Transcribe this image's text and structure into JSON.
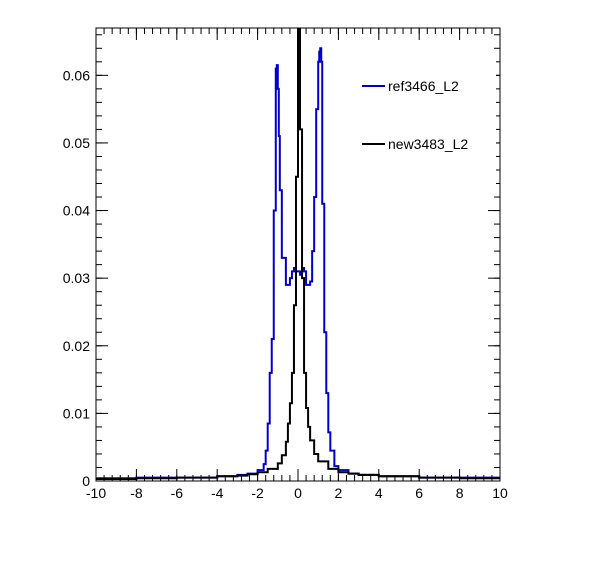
{
  "chart_data": {
    "type": "line",
    "title": "",
    "xlabel": "",
    "ylabel": "",
    "xlim": [
      -10,
      10
    ],
    "ylim": [
      0,
      0.067
    ],
    "grid": false,
    "legend_position": "top-right",
    "x_ticks": [
      -10,
      -8,
      -6,
      -4,
      -2,
      0,
      2,
      4,
      6,
      8,
      10
    ],
    "x_tick_labels": [
      "-10",
      "-8",
      "-6",
      "-4",
      "-2",
      "0",
      "2",
      "4",
      "6",
      "8",
      "10"
    ],
    "y_ticks": [
      0,
      0.01,
      0.02,
      0.03,
      0.04,
      0.05,
      0.06
    ],
    "y_tick_labels": [
      "0",
      "0.01",
      "0.02",
      "0.03",
      "0.04",
      "0.05",
      "0.06"
    ],
    "series": [
      {
        "name": "ref3466_L2",
        "color": "#0000cc",
        "step": true,
        "x": [
          -10,
          -8,
          -6,
          -4,
          -3,
          -2.5,
          -2,
          -1.7,
          -1.6,
          -1.5,
          -1.4,
          -1.3,
          -1.2,
          -1.1,
          -1.05,
          -1.0,
          -0.95,
          -0.9,
          -0.8,
          -0.6,
          -0.4,
          -0.3,
          -0.2,
          -0.1,
          0.0,
          0.1,
          0.2,
          0.3,
          0.4,
          0.6,
          0.7,
          0.8,
          0.9,
          1.0,
          1.05,
          1.1,
          1.15,
          1.2,
          1.3,
          1.4,
          1.5,
          1.6,
          1.8,
          2.0,
          2.5,
          3,
          4,
          6,
          8,
          10
        ],
        "y": [
          0.0004,
          0.0005,
          0.0005,
          0.0007,
          0.0009,
          0.0011,
          0.0016,
          0.0025,
          0.0045,
          0.0085,
          0.016,
          0.021,
          0.04,
          0.061,
          0.0615,
          0.058,
          0.051,
          0.043,
          0.033,
          0.029,
          0.03,
          0.031,
          0.0315,
          0.031,
          0.031,
          0.0305,
          0.0315,
          0.031,
          0.029,
          0.0295,
          0.034,
          0.042,
          0.055,
          0.062,
          0.0635,
          0.064,
          0.062,
          0.041,
          0.022,
          0.013,
          0.0072,
          0.0045,
          0.0022,
          0.0016,
          0.0011,
          0.0009,
          0.0007,
          0.0005,
          0.0005,
          0.0004
        ]
      },
      {
        "name": "new3483_L2",
        "color": "#000000",
        "step": true,
        "x": [
          -10,
          -8,
          -6,
          -4,
          -3,
          -2.5,
          -2,
          -1.5,
          -1.0,
          -0.8,
          -0.6,
          -0.5,
          -0.4,
          -0.3,
          -0.2,
          -0.1,
          0.0,
          0.1,
          0.2,
          0.3,
          0.4,
          0.5,
          0.6,
          0.8,
          1.0,
          1.5,
          2,
          2.5,
          3,
          4,
          6,
          8,
          10
        ],
        "y": [
          0.0003,
          0.0004,
          0.0005,
          0.0007,
          0.0008,
          0.001,
          0.0013,
          0.0018,
          0.0026,
          0.0038,
          0.0058,
          0.0085,
          0.0115,
          0.016,
          0.026,
          0.045,
          0.07,
          0.052,
          0.03,
          0.016,
          0.0108,
          0.008,
          0.006,
          0.004,
          0.0029,
          0.0018,
          0.0013,
          0.0011,
          0.0009,
          0.0007,
          0.0005,
          0.0004,
          0.0003
        ]
      }
    ]
  }
}
